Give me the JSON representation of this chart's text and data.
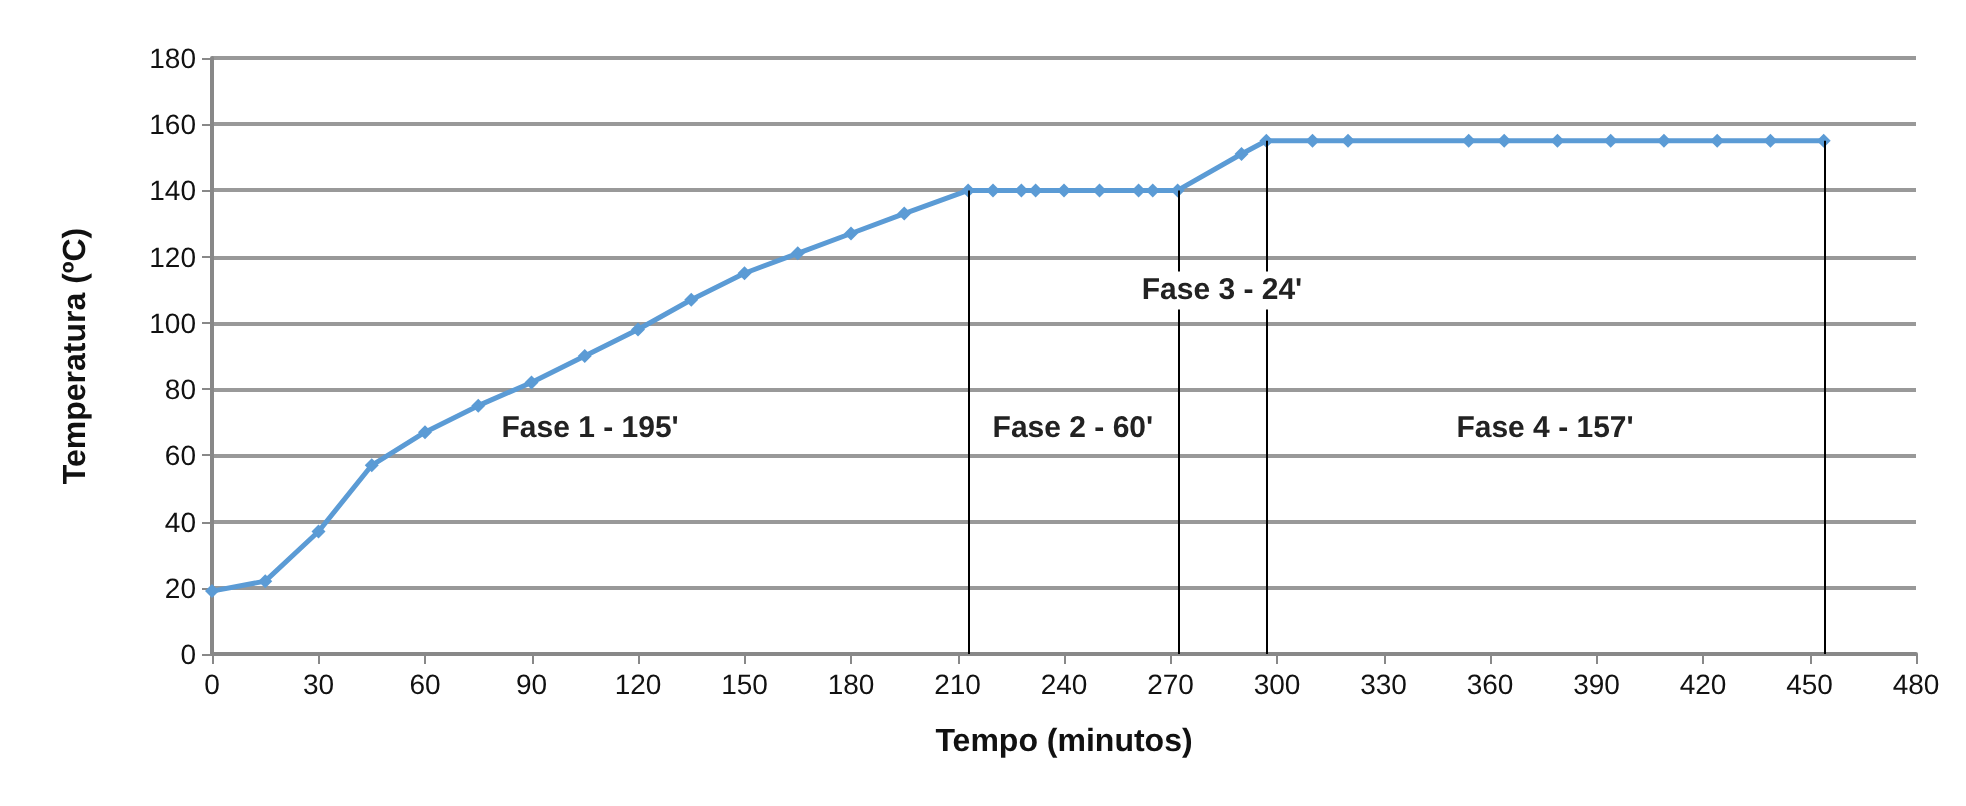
{
  "chart_data": {
    "type": "line",
    "xlabel": "Tempo (minutos)",
    "ylabel": "Temperatura (ºC)",
    "x": [
      0,
      15,
      30,
      45,
      60,
      75,
      90,
      105,
      120,
      135,
      150,
      165,
      180,
      195,
      213,
      220,
      228,
      232,
      240,
      250,
      261,
      265,
      272,
      290,
      297,
      310,
      320,
      354,
      364,
      379,
      394,
      409,
      424,
      439,
      454
    ],
    "series": [
      {
        "color": "#5b9bd5",
        "values": [
          19,
          22,
          37,
          57,
          67,
          75,
          82,
          90,
          98,
          107,
          115,
          121,
          127,
          133,
          140,
          140,
          140,
          140,
          140,
          140,
          140,
          140,
          140,
          151,
          155,
          155,
          155,
          155,
          155,
          155,
          155,
          155,
          155,
          155,
          155
        ]
      }
    ],
    "xlim": [
      0,
      480
    ],
    "xticks": [
      0,
      30,
      60,
      90,
      120,
      150,
      180,
      210,
      240,
      270,
      300,
      330,
      360,
      390,
      420,
      450,
      480
    ],
    "ylim": [
      0,
      180
    ],
    "yticks": [
      0,
      20,
      40,
      60,
      80,
      100,
      120,
      140,
      160,
      180
    ],
    "ref_lines": [
      {
        "axis": "x",
        "value": 213,
        "color": "#000000"
      },
      {
        "axis": "x",
        "value": 272,
        "color": "#000000"
      },
      {
        "axis": "x",
        "value": 297,
        "color": "#000000"
      },
      {
        "axis": "x",
        "value": 454,
        "color": "#000000"
      }
    ],
    "annotations": [
      "Fase 1 - 195'",
      "Fase 2 - 60'",
      "Fase 3 - 24'",
      "Fase 4 - 157'"
    ],
    "grid": "y",
    "marker": "diamond",
    "line_style": "solid"
  }
}
